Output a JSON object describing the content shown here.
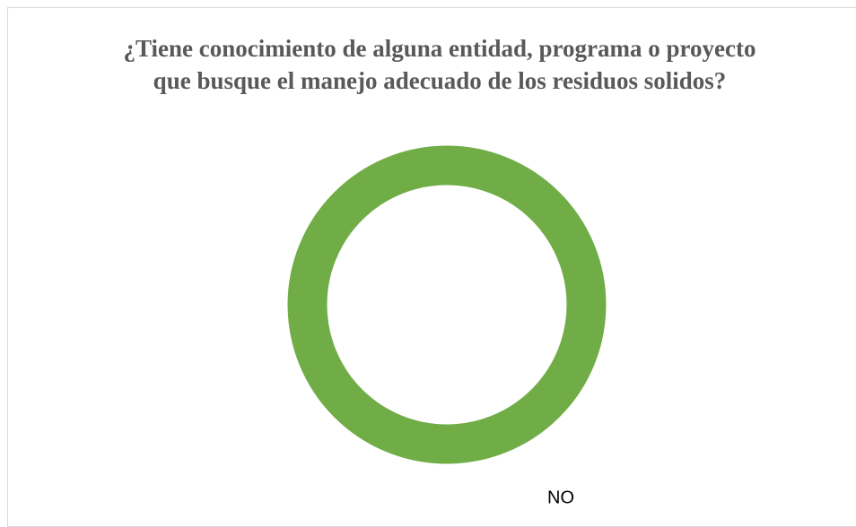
{
  "chart_data": {
    "type": "donut",
    "title": "¿Tiene conocimiento de alguna entidad, programa o proyecto que busque el manejo adecuado de los residuos solidos?",
    "categories": [
      "NO"
    ],
    "values": [
      100
    ],
    "colors": [
      "#70ad47"
    ]
  }
}
